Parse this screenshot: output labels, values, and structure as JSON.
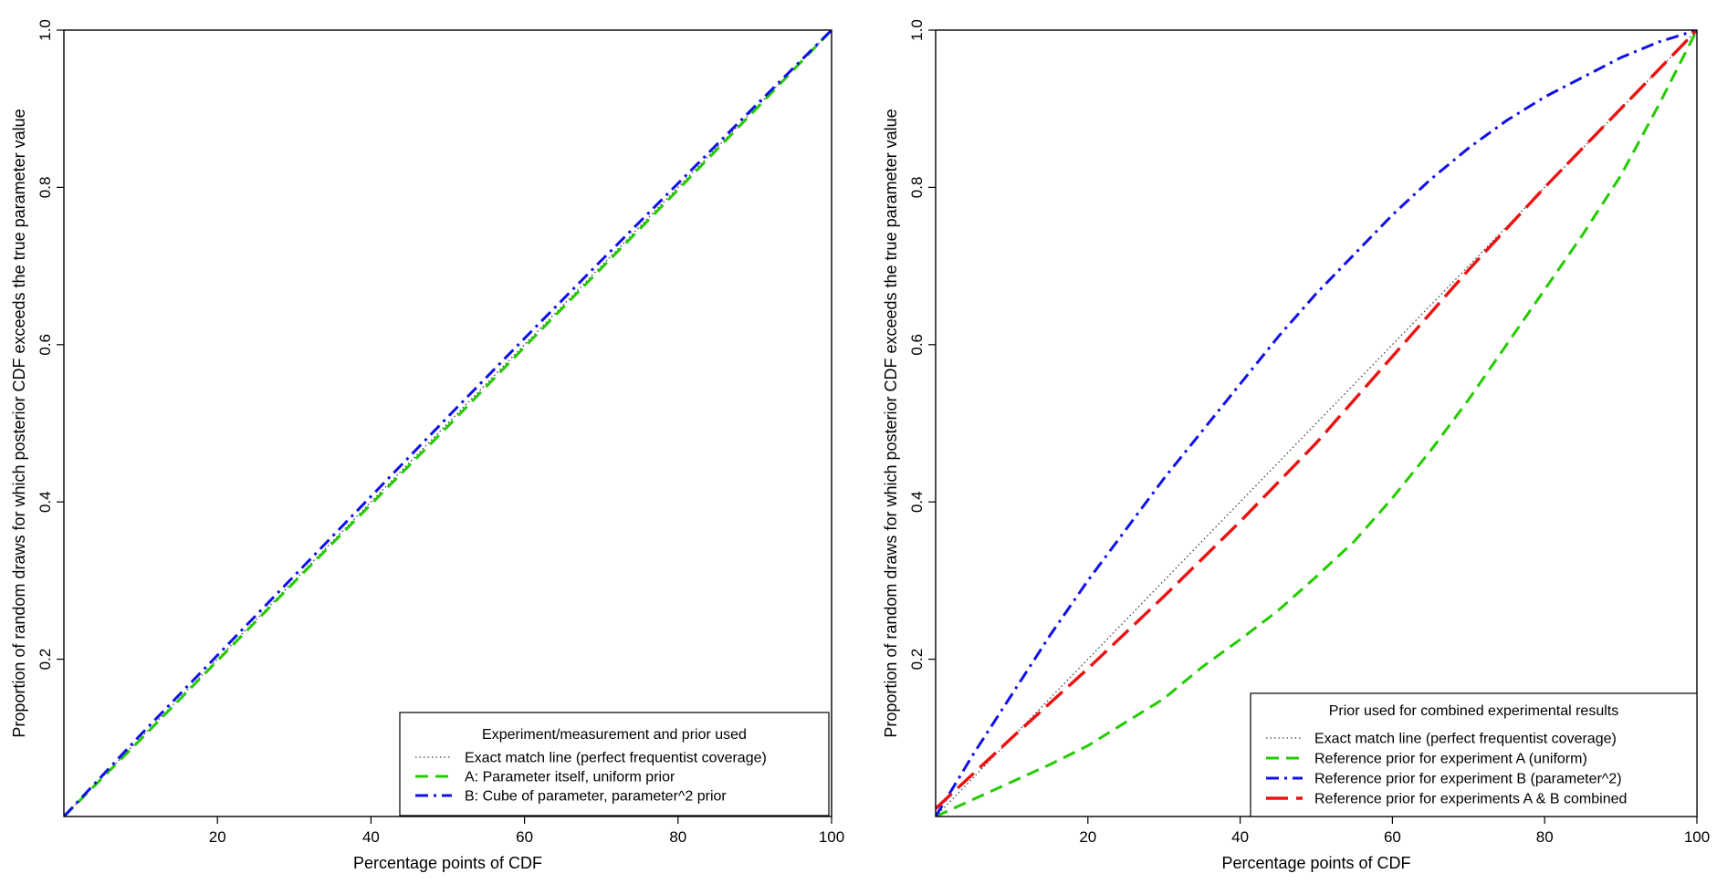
{
  "chart_data": [
    {
      "type": "line",
      "title": "",
      "xlabel": "Percentage points of CDF",
      "ylabel": "Proportion of random draws for which posterior CDF exceeds the true parameter value",
      "xlim": [
        0,
        100
      ],
      "ylim": [
        0,
        1
      ],
      "xticks": [
        20,
        40,
        60,
        80,
        100
      ],
      "yticks": [
        0.2,
        0.4,
        0.6,
        0.8,
        1.0
      ],
      "xtick_labels": [
        "20",
        "40",
        "60",
        "80",
        "100"
      ],
      "ytick_labels": [
        "0.2",
        "0.4",
        "0.6",
        "0.8",
        "1.0"
      ],
      "legend_title": "Experiment/measurement and prior used",
      "legend_position": "bottom-right",
      "series": [
        {
          "name": "Exact match line (perfect frequentist coverage)",
          "style": "dotted",
          "color": "#404040",
          "width": 1.3,
          "x": [
            0,
            100
          ],
          "y": [
            0,
            1
          ]
        },
        {
          "name": "A: Parameter itself, uniform prior",
          "style": "dashed",
          "color": "#22cc00",
          "width": 3,
          "x": [
            0,
            10,
            20,
            30,
            40,
            50,
            60,
            70,
            80,
            90,
            100
          ],
          "y": [
            0,
            0.098,
            0.198,
            0.298,
            0.397,
            0.496,
            0.597,
            0.697,
            0.797,
            0.898,
            1.0
          ]
        },
        {
          "name": "B: Cube of parameter, parameter^2 prior",
          "style": "dashdot",
          "color": "#1010ee",
          "width": 3,
          "x": [
            0,
            10,
            20,
            30,
            40,
            50,
            60,
            70,
            80,
            90,
            100
          ],
          "y": [
            0,
            0.104,
            0.205,
            0.306,
            0.407,
            0.508,
            0.608,
            0.707,
            0.805,
            0.903,
            1.0
          ]
        }
      ]
    },
    {
      "type": "line",
      "title": "",
      "xlabel": "Percentage points of CDF",
      "ylabel": "Proportion of random draws for which posterior CDF exceeds the true parameter value",
      "xlim": [
        0,
        100
      ],
      "ylim": [
        0,
        1
      ],
      "xticks": [
        20,
        40,
        60,
        80,
        100
      ],
      "yticks": [
        0.2,
        0.4,
        0.6,
        0.8,
        1.0
      ],
      "xtick_labels": [
        "20",
        "40",
        "60",
        "80",
        "100"
      ],
      "ytick_labels": [
        "0.2",
        "0.4",
        "0.6",
        "0.8",
        "1.0"
      ],
      "legend_title": "Prior used for combined experimental results",
      "legend_position": "bottom-right",
      "series": [
        {
          "name": "Exact match line (perfect frequentist coverage)",
          "style": "dotted",
          "color": "#404040",
          "width": 1.3,
          "x": [
            0,
            100
          ],
          "y": [
            0,
            1
          ]
        },
        {
          "name": "Reference prior for experiment A (uniform)",
          "style": "dashed",
          "color": "#22cc00",
          "width": 3,
          "x": [
            0,
            5,
            10,
            15,
            20,
            25,
            30,
            35,
            40,
            45,
            50,
            55,
            60,
            65,
            70,
            75,
            80,
            85,
            90,
            95,
            100
          ],
          "y": [
            0,
            0.022,
            0.044,
            0.066,
            0.09,
            0.12,
            0.15,
            0.19,
            0.225,
            0.262,
            0.305,
            0.35,
            0.405,
            0.465,
            0.53,
            0.6,
            0.67,
            0.74,
            0.815,
            0.905,
            1.0
          ]
        },
        {
          "name": "Reference prior for experiment B (parameter^2)",
          "style": "dashdot",
          "color": "#1010ee",
          "width": 3,
          "x": [
            0,
            2.5,
            5,
            10,
            15,
            20,
            25,
            30,
            35,
            40,
            45,
            50,
            55,
            60,
            65,
            70,
            75,
            80,
            85,
            90,
            95,
            100
          ],
          "y": [
            0,
            0.04,
            0.08,
            0.155,
            0.23,
            0.3,
            0.365,
            0.43,
            0.49,
            0.55,
            0.61,
            0.665,
            0.715,
            0.765,
            0.81,
            0.85,
            0.885,
            0.915,
            0.94,
            0.965,
            0.985,
            1.0
          ]
        },
        {
          "name": "Reference prior for experiments A & B combined",
          "style": "longdash",
          "color": "#ee1111",
          "width": 3.4,
          "x": [
            0,
            5,
            10,
            20,
            30,
            40,
            50,
            60,
            70,
            80,
            90,
            100
          ],
          "y": [
            0.01,
            0.055,
            0.1,
            0.188,
            0.28,
            0.375,
            0.475,
            0.585,
            0.695,
            0.8,
            0.9,
            1.0
          ]
        }
      ]
    }
  ]
}
